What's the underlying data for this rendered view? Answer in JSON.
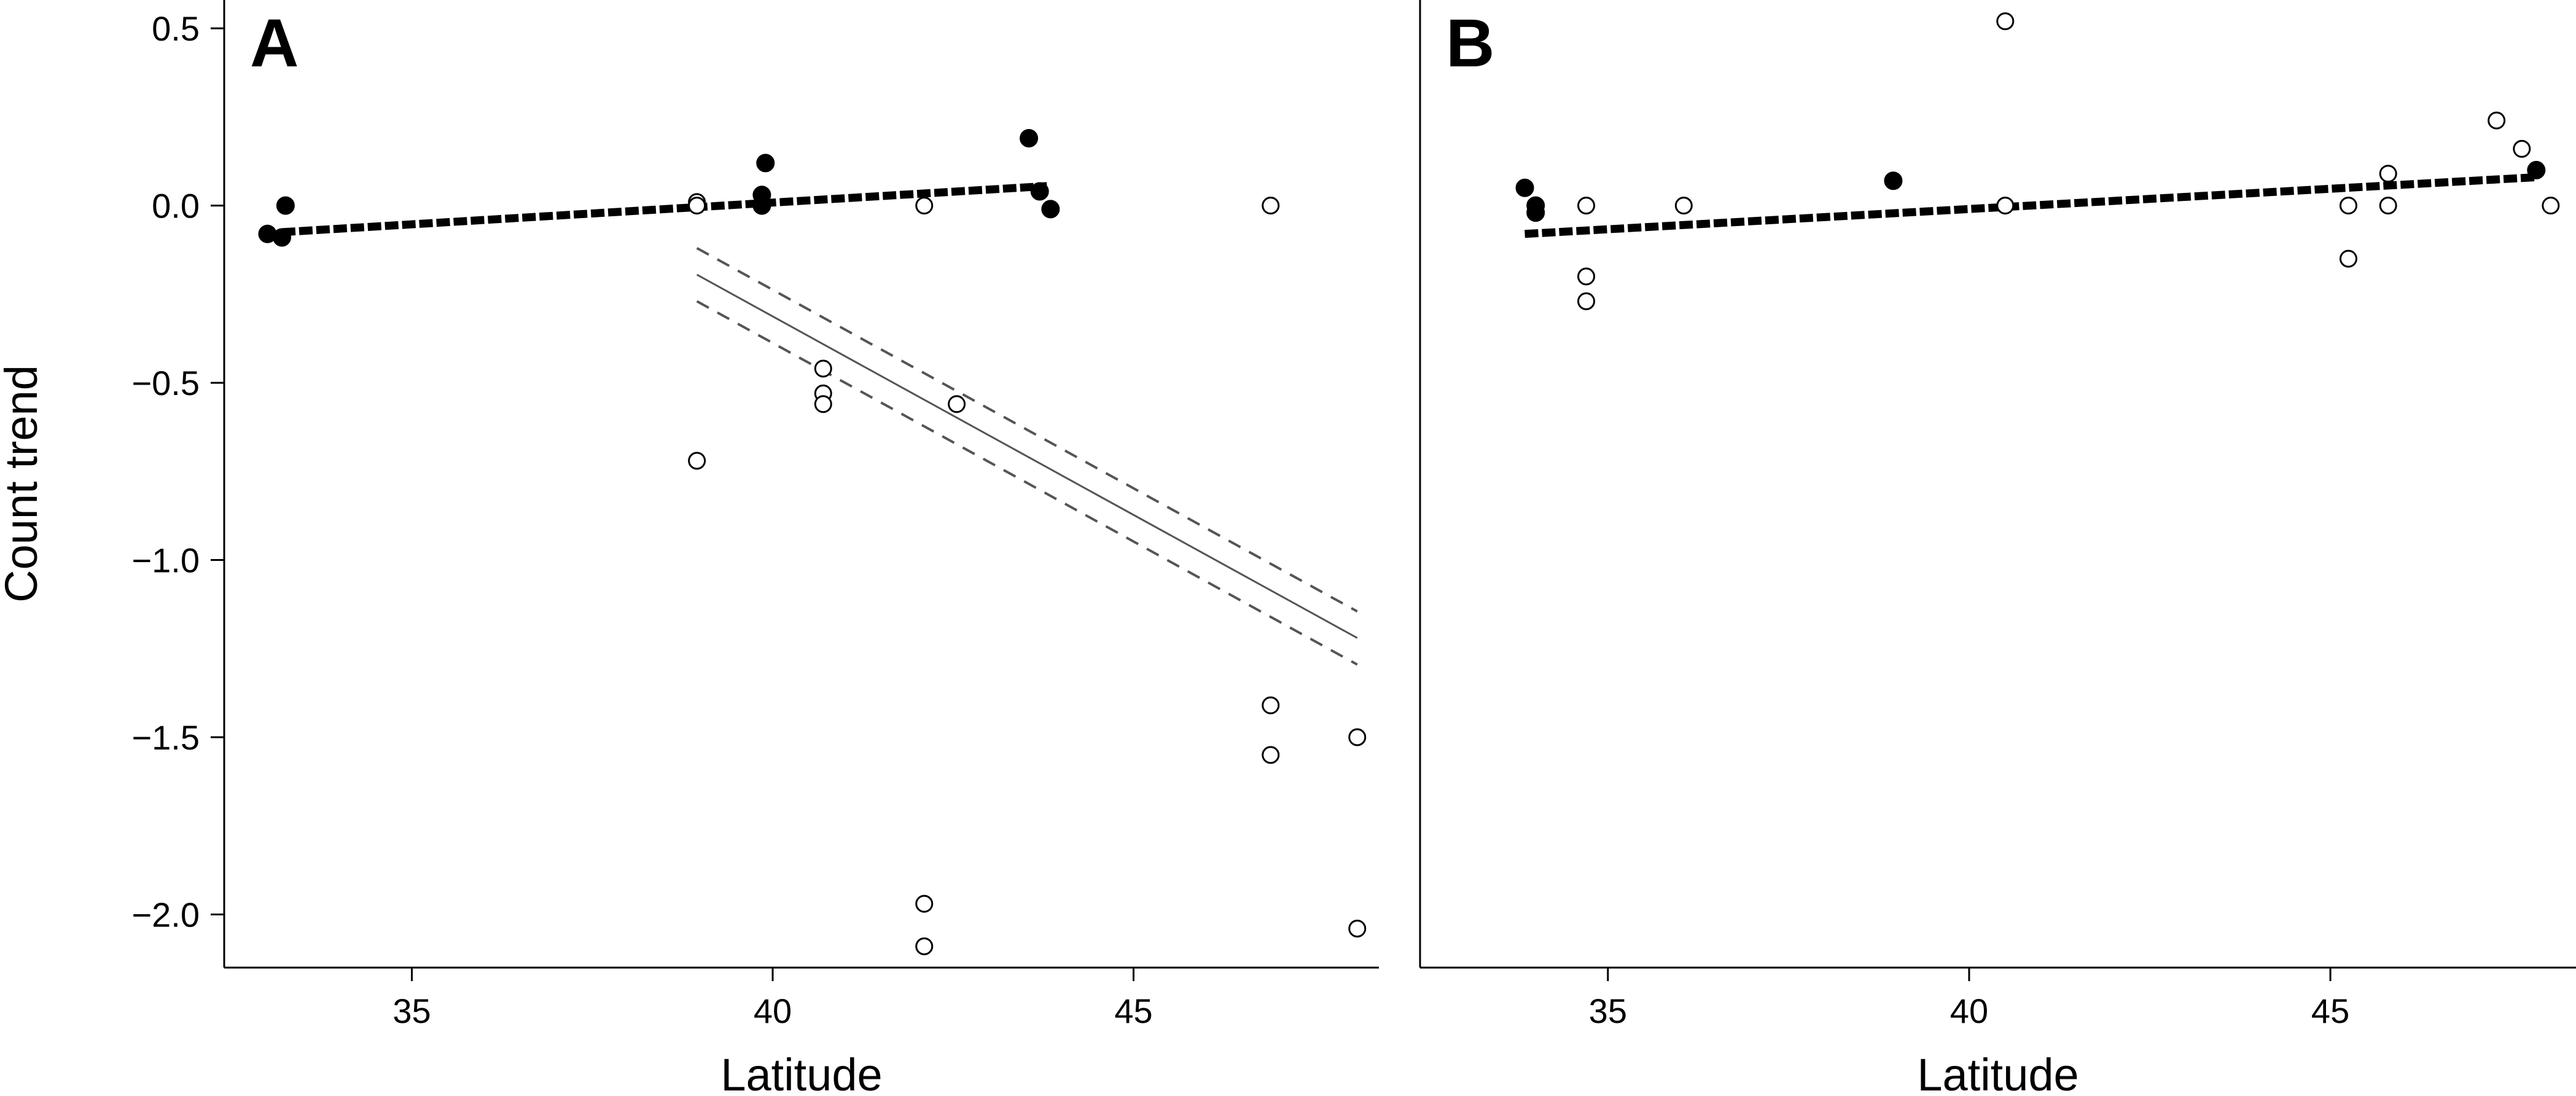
{
  "chart_data": [
    {
      "panel": "A",
      "type": "scatter",
      "panel_label": "A",
      "xlabel": "Latitude",
      "ylabel": "Count trend",
      "xlim": [
        32.4,
        48.4
      ],
      "ylim": [
        -2.15,
        0.58
      ],
      "xticks": [
        35,
        40,
        45
      ],
      "xtick_labels": [
        "35",
        "40",
        "45"
      ],
      "yticks": [
        0.5,
        0.0,
        -0.5,
        -1.0,
        -1.5,
        -2.0
      ],
      "ytick_labels": [
        "0.5",
        "0.0",
        "−0.5",
        "−1.0",
        "−1.5",
        "−2.0"
      ],
      "series": [
        {
          "marker": "filled",
          "x": [
            33.0,
            33.2,
            33.25,
            39.85,
            39.85,
            39.9,
            43.55,
            43.7,
            43.85
          ],
          "y": [
            -0.08,
            -0.09,
            0.0,
            0.0,
            0.03,
            0.12,
            0.19,
            0.04,
            -0.01
          ]
        },
        {
          "marker": "open",
          "x": [
            38.95,
            38.95,
            38.95,
            40.7,
            40.7,
            40.7,
            42.1,
            42.1,
            42.1,
            42.55,
            46.9,
            46.9,
            46.9,
            48.1,
            48.1
          ],
          "y": [
            0.01,
            0.0,
            -0.72,
            -0.46,
            -0.53,
            -0.56,
            0.0,
            -1.97,
            -2.09,
            -0.56,
            0.0,
            -1.41,
            -1.55,
            -1.5,
            -2.04
          ]
        }
      ],
      "fits": [
        {
          "style": "thick-dashed",
          "x": [
            33.2,
            43.8
          ],
          "y": [
            -0.075,
            0.055
          ]
        },
        {
          "style": "solid-gray",
          "x": [
            38.95,
            48.1
          ],
          "y": [
            -0.195,
            -1.22
          ]
        },
        {
          "style": "dashed-gray",
          "x": [
            38.95,
            48.1
          ],
          "y": [
            -0.12,
            -1.145
          ]
        },
        {
          "style": "dashed-gray",
          "x": [
            38.95,
            48.1
          ],
          "y": [
            -0.27,
            -1.295
          ]
        }
      ]
    },
    {
      "panel": "B",
      "type": "scatter",
      "panel_label": "B",
      "xlabel": "Latitude",
      "ylabel": "",
      "xlim": [
        32.4,
        48.4
      ],
      "ylim": [
        -2.15,
        0.58
      ],
      "xticks": [
        35,
        40,
        45
      ],
      "xtick_labels": [
        "35",
        "40",
        "45"
      ],
      "yticks": [],
      "ytick_labels": [],
      "series": [
        {
          "marker": "filled",
          "x": [
            33.85,
            34.0,
            34.0,
            38.95,
            47.85
          ],
          "y": [
            0.05,
            0.0,
            -0.02,
            0.07,
            0.1
          ]
        },
        {
          "marker": "open",
          "x": [
            34.7,
            34.7,
            34.7,
            36.05,
            40.5,
            40.5,
            45.25,
            45.25,
            45.8,
            45.8,
            47.3,
            47.65,
            48.05
          ],
          "y": [
            0.0,
            -0.2,
            -0.27,
            0.0,
            0.52,
            0.0,
            0.0,
            -0.15,
            0.09,
            0.0,
            0.24,
            0.16,
            0.0
          ]
        }
      ],
      "fits": [
        {
          "style": "thick-dashed",
          "x": [
            33.85,
            47.85
          ],
          "y": [
            -0.08,
            0.08
          ]
        }
      ]
    }
  ]
}
